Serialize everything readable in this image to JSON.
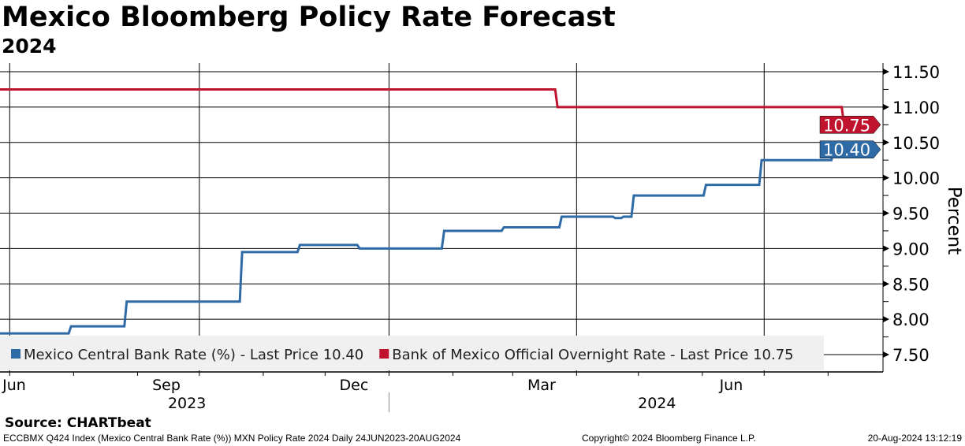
{
  "chart_data": {
    "type": "line",
    "title": "Mexico Bloomberg Policy Rate Forecast",
    "subtitle": "2024",
    "ylabel": "Percent",
    "ylim": [
      7.5,
      11.5
    ],
    "yticks": [
      "11.50",
      "11.00",
      "10.50",
      "10.00",
      "9.50",
      "9.00",
      "8.50",
      "8.00",
      "7.50"
    ],
    "xrange": [
      "2023-06-24",
      "2024-08-20"
    ],
    "month_labels": [
      {
        "label": "Jun",
        "date": "2023-06-15"
      },
      {
        "label": "Sep",
        "date": "2023-09-15"
      },
      {
        "label": "Dec",
        "date": "2023-12-15"
      },
      {
        "label": "Mar",
        "date": "2024-03-15"
      },
      {
        "label": "Jun",
        "date": "2024-06-15"
      }
    ],
    "year_labels": [
      {
        "label": "2023",
        "date": "2023-09-25"
      },
      {
        "label": "2024",
        "date": "2024-05-10"
      }
    ],
    "grid_dates": [
      "2023-07-01",
      "2023-10-01",
      "2024-01-01",
      "2024-04-01",
      "2024-07-01"
    ],
    "series": [
      {
        "name": "Mexico Central Bank Rate (%) - Last Price 10.40",
        "color": "#2e6aa6",
        "last": "10.40",
        "steps": [
          [
            "2023-06-24",
            7.8
          ],
          [
            "2023-07-30",
            7.9
          ],
          [
            "2023-08-26",
            8.25
          ],
          [
            "2023-10-21",
            8.95
          ],
          [
            "2023-11-18",
            9.05
          ],
          [
            "2023-12-17",
            9.0
          ],
          [
            "2024-01-27",
            9.25
          ],
          [
            "2024-02-25",
            9.3
          ],
          [
            "2024-03-24",
            9.45
          ],
          [
            "2024-04-19",
            9.43
          ],
          [
            "2024-04-23",
            9.45
          ],
          [
            "2024-04-28",
            9.75
          ],
          [
            "2024-06-02",
            9.9
          ],
          [
            "2024-06-29",
            10.25
          ],
          [
            "2024-08-03",
            10.4
          ],
          [
            "2024-08-20",
            10.4
          ]
        ]
      },
      {
        "name": "Bank of Mexico Official Overnight Rate - Last Price 10.75",
        "color": "#c0142e",
        "last": "10.75",
        "steps": [
          [
            "2023-06-24",
            11.25
          ],
          [
            "2024-03-22",
            11.0
          ],
          [
            "2024-08-08",
            10.75
          ],
          [
            "2024-08-20",
            10.75
          ]
        ]
      }
    ]
  },
  "source": "Source: CHARTbeat",
  "footer": {
    "left": "ECCBMX Q424 Index (Mexico Central Bank Rate (%)) MXN Policy Rate 2024  Daily 24JUN2023-20AUG2024",
    "center": "Copyright© 2024 Bloomberg Finance L.P.",
    "right": "20-Aug-2024 13:12:19"
  }
}
